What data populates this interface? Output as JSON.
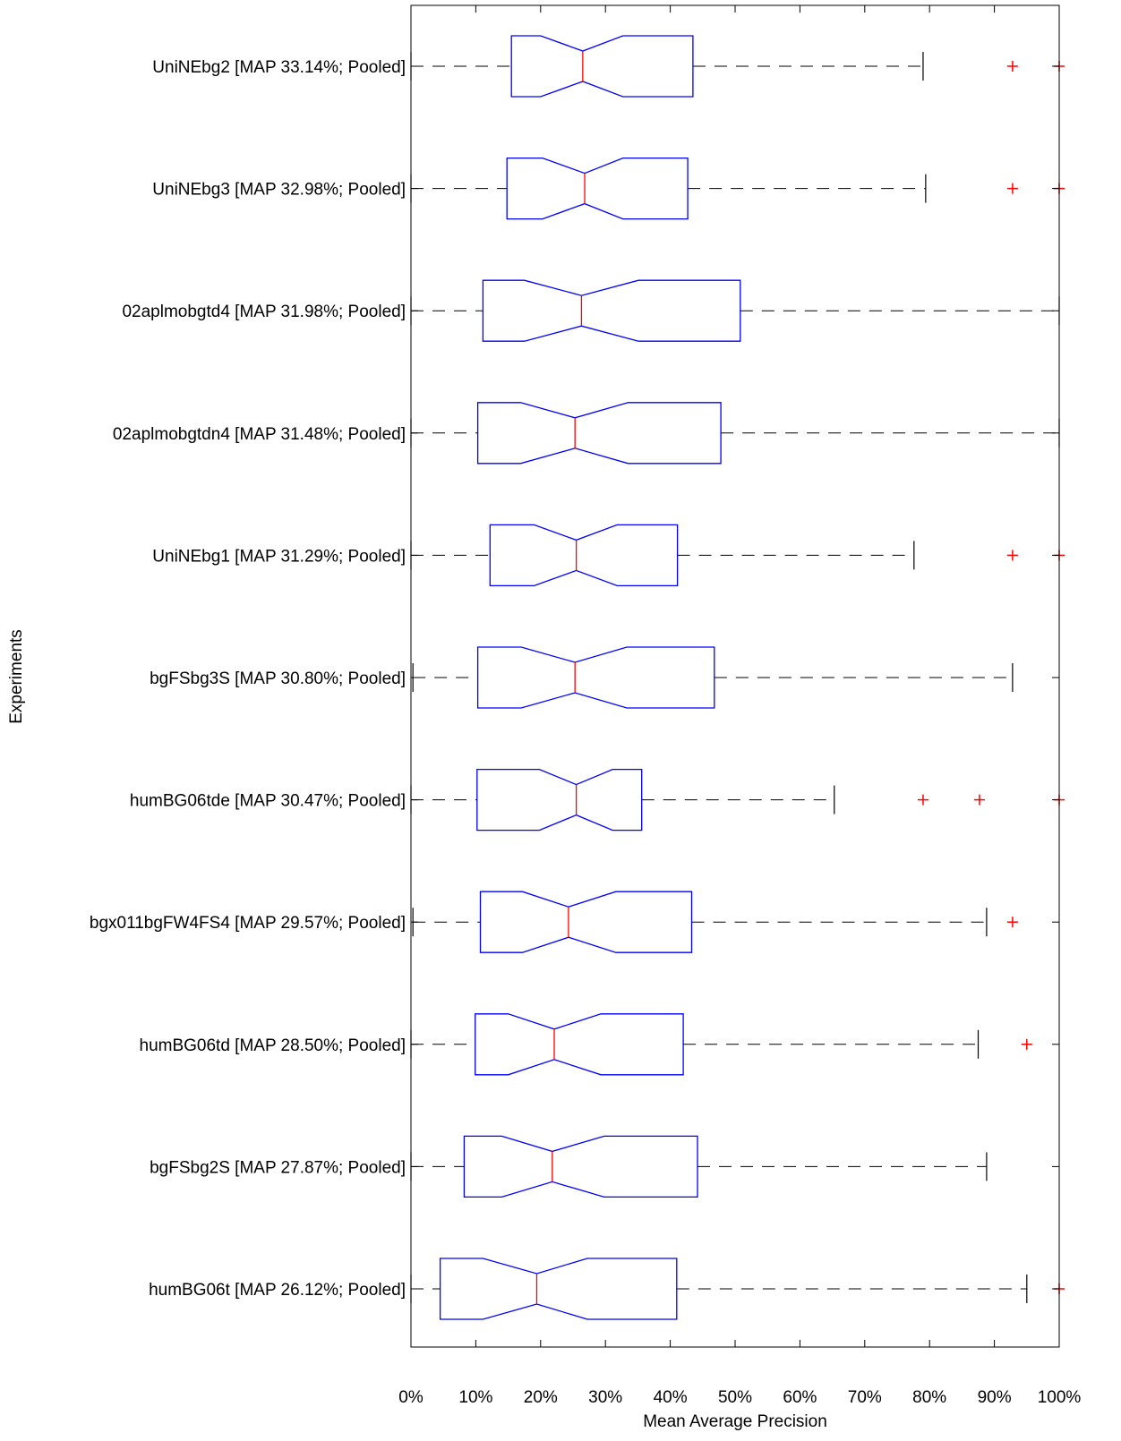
{
  "chart_data": {
    "type": "boxplot",
    "orientation": "horizontal",
    "notched": true,
    "xlabel": "Mean Average Precision",
    "ylabel": "Experiments",
    "xlim": [
      0,
      100
    ],
    "x_ticks": [
      0,
      10,
      20,
      30,
      40,
      50,
      60,
      70,
      80,
      90,
      100
    ],
    "x_tick_labels": [
      "0%",
      "10%",
      "20%",
      "30%",
      "40%",
      "50%",
      "60%",
      "70%",
      "80%",
      "90%",
      "100%"
    ],
    "colors": {
      "box": "#0000ff",
      "median": "#ff0000",
      "whisker": "#000000",
      "outlier": "#ff0000",
      "axes": "#000000"
    },
    "series": [
      {
        "label": "UniNEbg2 [MAP 33.14%; Pooled]",
        "whisker_low": 0,
        "q1": 15.5,
        "notch_low": 20.0,
        "median": 26.5,
        "notch_high": 32.7,
        "q3": 43.5,
        "whisker_high": 79.0,
        "outliers": [
          92.8,
          100
        ]
      },
      {
        "label": "UniNEbg3 [MAP 32.98%; Pooled]",
        "whisker_low": 0,
        "q1": 14.8,
        "notch_low": 20.3,
        "median": 26.8,
        "notch_high": 32.7,
        "q3": 42.7,
        "whisker_high": 79.4,
        "outliers": [
          92.8,
          100
        ]
      },
      {
        "label": "02aplmobgtd4 [MAP 31.98%; Pooled]",
        "whisker_low": 0,
        "q1": 11.1,
        "notch_low": 17.5,
        "median": 26.3,
        "notch_high": 35.1,
        "q3": 50.8,
        "whisker_high": 100,
        "outliers": []
      },
      {
        "label": "02aplmobgtdn4 [MAP 31.48%; Pooled]",
        "whisker_low": 0,
        "q1": 10.3,
        "notch_low": 16.9,
        "median": 25.3,
        "notch_high": 33.5,
        "q3": 47.8,
        "whisker_high": 100,
        "outliers": []
      },
      {
        "label": "UniNEbg1 [MAP 31.29%; Pooled]",
        "whisker_low": 0,
        "q1": 12.2,
        "notch_low": 19.0,
        "median": 25.5,
        "notch_high": 31.8,
        "q3": 41.1,
        "whisker_high": 77.6,
        "outliers": [
          92.8,
          100
        ]
      },
      {
        "label": "bgFSbg3S [MAP 30.80%; Pooled]",
        "whisker_low": 0.3,
        "q1": 10.3,
        "notch_low": 17.0,
        "median": 25.3,
        "notch_high": 33.3,
        "q3": 46.8,
        "whisker_high": 92.8,
        "outliers": []
      },
      {
        "label": "humBG06tde [MAP 30.47%; Pooled]",
        "whisker_low": 0,
        "q1": 10.2,
        "notch_low": 19.8,
        "median": 25.5,
        "notch_high": 31.1,
        "q3": 35.6,
        "whisker_high": 65.3,
        "outliers": [
          79.0,
          87.7,
          100
        ]
      },
      {
        "label": "bgx011bgFW4FS4 [MAP 29.57%; Pooled]",
        "whisker_low": 0.3,
        "q1": 10.7,
        "notch_low": 17.2,
        "median": 24.3,
        "notch_high": 31.6,
        "q3": 43.3,
        "whisker_high": 88.8,
        "outliers": [
          92.8
        ]
      },
      {
        "label": "humBG06td [MAP 28.50%; Pooled]",
        "whisker_low": 0,
        "q1": 9.9,
        "notch_low": 15.0,
        "median": 22.1,
        "notch_high": 29.3,
        "q3": 42.0,
        "whisker_high": 87.5,
        "outliers": [
          95.0
        ]
      },
      {
        "label": "bgFSbg2S [MAP 27.87%; Pooled]",
        "whisker_low": 0,
        "q1": 8.2,
        "notch_low": 14.0,
        "median": 21.8,
        "notch_high": 29.8,
        "q3": 44.2,
        "whisker_high": 88.8,
        "outliers": []
      },
      {
        "label": "humBG06t [MAP 26.12%; Pooled]",
        "whisker_low": 0,
        "q1": 4.5,
        "notch_low": 11.1,
        "median": 19.4,
        "notch_high": 27.2,
        "q3": 41.0,
        "whisker_high": 95.0,
        "outliers": [
          100
        ]
      }
    ]
  }
}
